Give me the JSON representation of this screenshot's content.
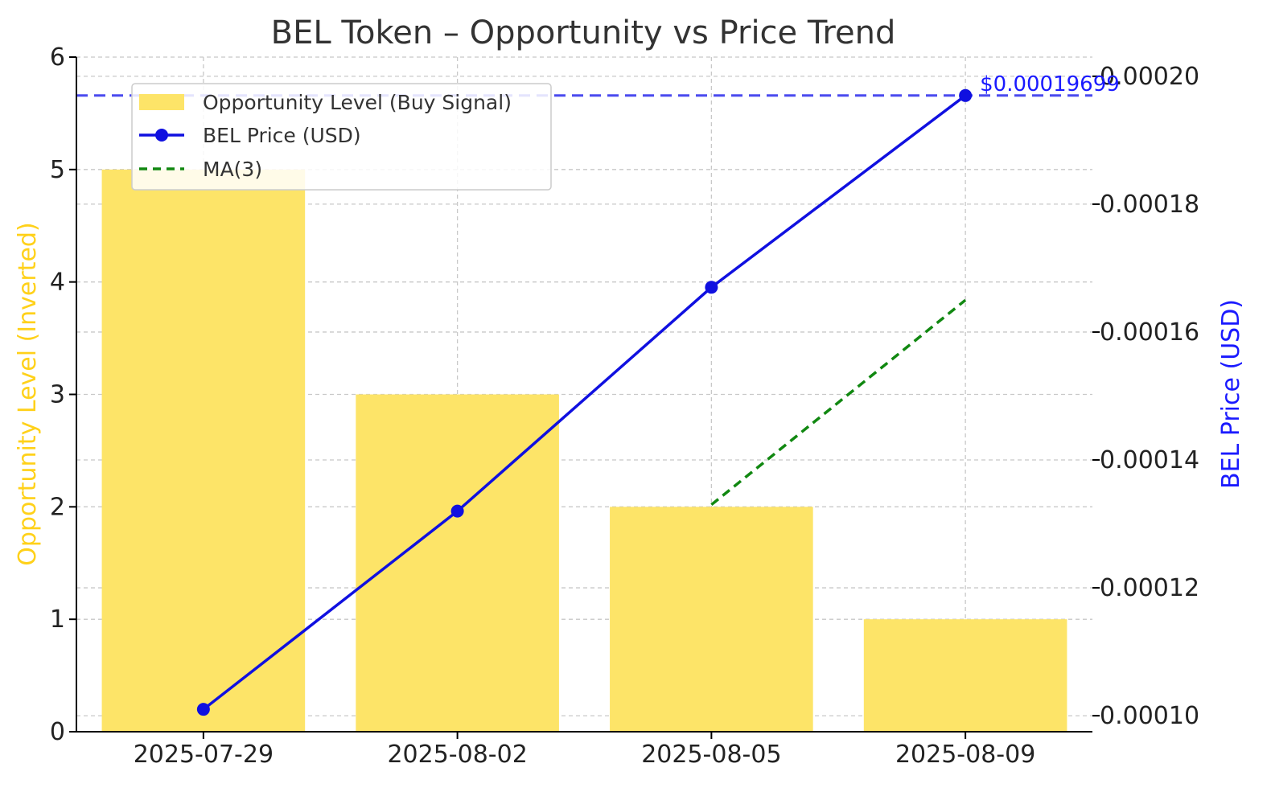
{
  "chart_data": {
    "type": "bar",
    "title": "BEL Token – Opportunity vs Price Trend",
    "categories": [
      "2025-07-29",
      "2025-08-02",
      "2025-08-05",
      "2025-08-09"
    ],
    "series": [
      {
        "name": "Opportunity Level (Buy Signal)",
        "type": "bar",
        "axis": "left",
        "values": [
          5,
          3,
          2,
          1
        ]
      },
      {
        "name": "BEL Price (USD)",
        "type": "line",
        "axis": "right",
        "values": [
          0.000101,
          0.000132,
          0.000167,
          0.00019699
        ]
      },
      {
        "name": "MA(3)",
        "type": "line",
        "axis": "right",
        "style": "dashed",
        "values": [
          null,
          null,
          0.000133,
          0.000165
        ]
      }
    ],
    "ylabel_left": "Opportunity Level (Inverted)",
    "ylabel_right": "BEL Price (USD)",
    "ylim_left": [
      0,
      6
    ],
    "ylim_right": [
      9.75e-05,
      0.000203
    ],
    "yticks_left": [
      "0",
      "1",
      "2",
      "3",
      "4",
      "5",
      "6"
    ],
    "yticks_right": [
      "0.00010",
      "0.00012",
      "0.00014",
      "0.00016",
      "0.00018",
      "0.00020"
    ],
    "hline": {
      "value": 0.00019699,
      "label": "$0.00019699"
    },
    "grid": true,
    "legend_position": "top-left",
    "colors": {
      "bar": "#fde468",
      "price": "#1010e0",
      "ma": "#118811",
      "hline": "#4a4aef",
      "left_label": "#ffd11a",
      "right_label": "#1a1aff"
    }
  }
}
